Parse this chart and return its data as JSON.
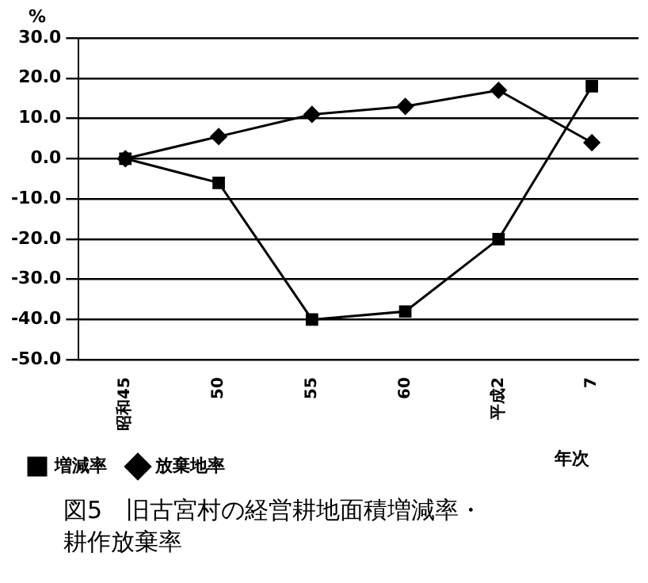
{
  "chart_data": {
    "type": "line",
    "title": "図5　旧古宮村の経営耕地面積増減率・耕作放棄率",
    "ylabel": "%",
    "xlabel": "年次",
    "categories": [
      "昭和45",
      "50",
      "55",
      "60",
      "平成2",
      "7"
    ],
    "series": [
      {
        "name": "増減率",
        "color": "#000000",
        "marker": "square",
        "values": [
          0,
          -6,
          -40,
          -38,
          -20,
          18
        ]
      },
      {
        "name": "放棄地率",
        "color": "#000000",
        "marker": "diamond",
        "values": [
          0,
          5.5,
          11,
          13,
          17,
          4
        ]
      }
    ],
    "ylim": [
      -50,
      30
    ],
    "yticks": [
      {
        "value": 30,
        "label": "30.0"
      },
      {
        "value": 20,
        "label": "20.0"
      },
      {
        "value": 10,
        "label": "10.0"
      },
      {
        "value": 0,
        "label": "0.0"
      },
      {
        "value": -10,
        "label": "-10.0"
      },
      {
        "value": -20,
        "label": "-20.0"
      },
      {
        "value": -30,
        "label": "-30.0"
      },
      {
        "value": -40,
        "label": "-40.0"
      },
      {
        "value": -50,
        "label": "-50.0"
      }
    ],
    "grid": "y",
    "legend": "bottom",
    "line_style": "solid"
  }
}
